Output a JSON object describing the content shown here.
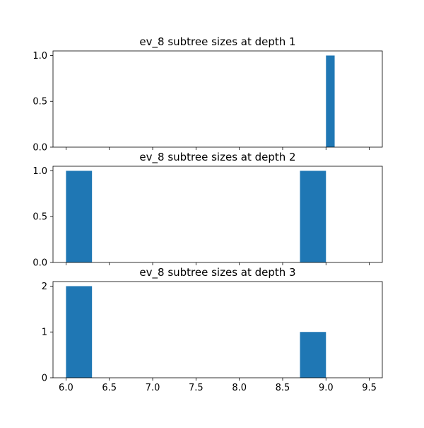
{
  "colors": {
    "bar": "#1f77b4",
    "axis": "#000000",
    "background": "#ffffff"
  },
  "chart_data": [
    {
      "type": "bar",
      "title": "ev_8 subtree sizes at depth 1",
      "xlim": [
        5.85,
        9.65
      ],
      "ylim": [
        0,
        1.05
      ],
      "xticks": [
        6.0,
        6.5,
        7.0,
        7.5,
        8.0,
        8.5,
        9.0,
        9.5
      ],
      "xtick_labels": [],
      "yticks": [
        0.0,
        0.5,
        1.0
      ],
      "ytick_labels": [
        "0.0",
        "0.5",
        "1.0"
      ],
      "bars": [
        {
          "x0": 9.0,
          "x1": 9.1,
          "value": 1
        }
      ]
    },
    {
      "type": "bar",
      "title": "ev_8 subtree sizes at depth 2",
      "xlim": [
        5.85,
        9.65
      ],
      "ylim": [
        0,
        1.05
      ],
      "xticks": [
        6.0,
        6.5,
        7.0,
        7.5,
        8.0,
        8.5,
        9.0,
        9.5
      ],
      "xtick_labels": [],
      "yticks": [
        0.0,
        0.5,
        1.0
      ],
      "ytick_labels": [
        "0.0",
        "0.5",
        "1.0"
      ],
      "bars": [
        {
          "x0": 6.0,
          "x1": 6.3,
          "value": 1
        },
        {
          "x0": 8.7,
          "x1": 9.0,
          "value": 1
        }
      ]
    },
    {
      "type": "bar",
      "title": "ev_8 subtree sizes at depth 3",
      "xlim": [
        5.85,
        9.65
      ],
      "ylim": [
        0,
        2.1
      ],
      "xticks": [
        6.0,
        6.5,
        7.0,
        7.5,
        8.0,
        8.5,
        9.0,
        9.5
      ],
      "xtick_labels": [
        "6.0",
        "6.5",
        "7.0",
        "7.5",
        "8.0",
        "8.5",
        "9.0",
        "9.5"
      ],
      "yticks": [
        0,
        1,
        2
      ],
      "ytick_labels": [
        "0",
        "1",
        "2"
      ],
      "bars": [
        {
          "x0": 6.0,
          "x1": 6.3,
          "value": 2
        },
        {
          "x0": 8.7,
          "x1": 9.0,
          "value": 1
        }
      ]
    }
  ]
}
